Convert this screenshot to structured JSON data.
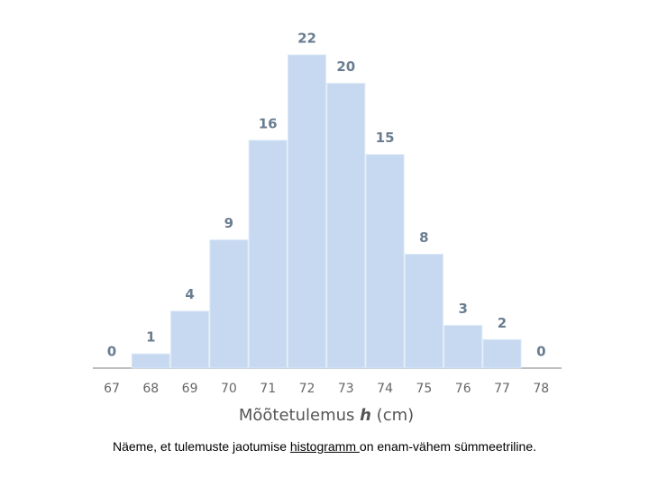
{
  "chart_data": {
    "type": "bar",
    "categories": [
      "67",
      "68",
      "69",
      "70",
      "71",
      "72",
      "73",
      "74",
      "75",
      "76",
      "77",
      "78"
    ],
    "values": [
      0,
      1,
      4,
      9,
      16,
      22,
      20,
      15,
      8,
      3,
      2,
      0
    ],
    "color": "#c6d9f0",
    "x_label": {
      "text": "Mõõtetulemus ",
      "variable": "h",
      "unit": " (cm)"
    }
  },
  "caption": {
    "before": "Näeme, et tulemuste jaotumise ",
    "link": "histogramm ",
    "after": "on enam-vähem sümmeetriline."
  }
}
